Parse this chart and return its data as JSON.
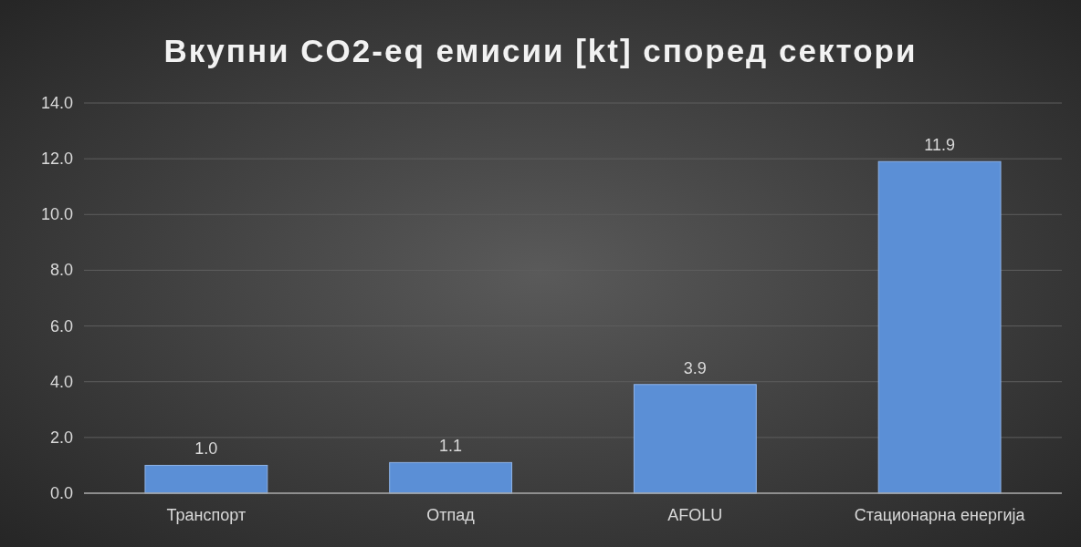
{
  "chart_data": {
    "type": "bar",
    "title": "Вкупни CO2-eq емисии [kt] според сектори",
    "categories": [
      "Транспорт",
      "Отпад",
      "AFOLU",
      "Стационарна енергија"
    ],
    "values": [
      1.0,
      1.1,
      3.9,
      11.9
    ],
    "color": "#5b8fd6",
    "ylim": [
      0,
      14
    ],
    "yticks": [
      {
        "value": 0,
        "label": "0.0"
      },
      {
        "value": 2,
        "label": "2.0"
      },
      {
        "value": 4,
        "label": "4.0"
      },
      {
        "value": 6,
        "label": "6.0"
      },
      {
        "value": 8,
        "label": "8.0"
      },
      {
        "value": 10,
        "label": "10.0"
      },
      {
        "value": 12,
        "label": "12.0"
      },
      {
        "value": 14,
        "label": "14.0"
      }
    ],
    "value_labels": [
      "1.0",
      "1.1",
      "3.9",
      "11.9"
    ],
    "grid": "y"
  }
}
